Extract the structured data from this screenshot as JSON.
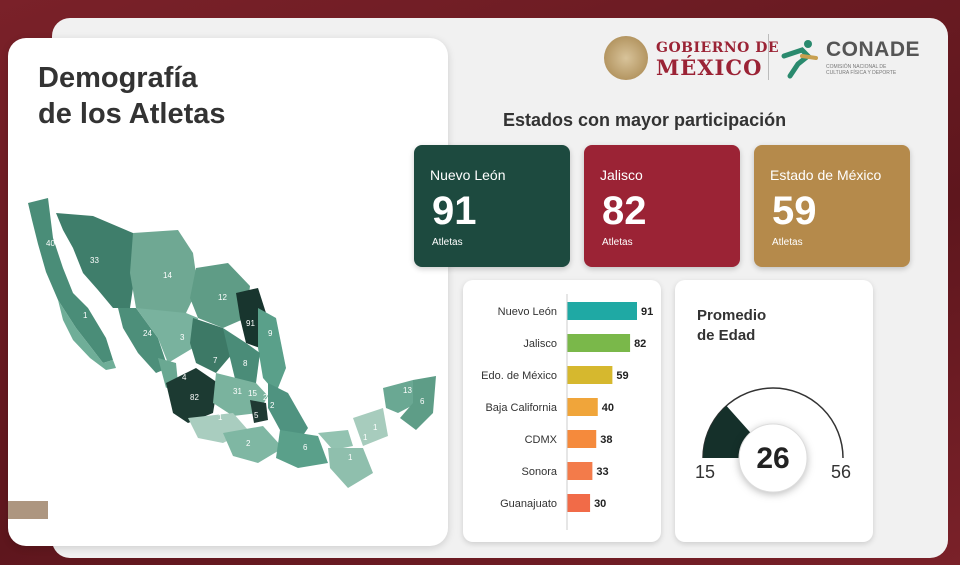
{
  "title": {
    "line1": "Demografía",
    "line2": "de los Atletas"
  },
  "logos": {
    "gobierno_line1": "GOBIERNO DE",
    "gobierno_line2": "MÉXICO",
    "conade": "CONADE",
    "conade_sub": "COMISIÓN NACIONAL DE CULTURA FÍSICA Y DEPORTE"
  },
  "top_states": {
    "heading": "Estados con mayor participación",
    "cards": [
      {
        "state": "Nuevo León",
        "value": "91",
        "unit": "Atletas",
        "color": "#1d4a3f"
      },
      {
        "state": "Jalisco",
        "value": "82",
        "unit": "Atletas",
        "color": "#9b2335"
      },
      {
        "state": "Estado de México",
        "value": "59",
        "unit": "Atletas",
        "color": "#b58a4b"
      }
    ]
  },
  "age": {
    "title_line1": "Promedio",
    "title_line2": "de Edad",
    "value": "26",
    "min": "15",
    "max": "56",
    "fill_color": "#15302a"
  },
  "map": {
    "labels": [
      "40",
      "33",
      "14",
      "12",
      "91",
      "9",
      "24",
      "3",
      "7",
      "8",
      "82",
      "4",
      "31",
      "15",
      "2",
      "2",
      "1",
      "5",
      "2",
      "6",
      "1",
      "13",
      "6",
      "1",
      "1",
      "1"
    ]
  },
  "chart_data": {
    "type": "bar",
    "orientation": "horizontal",
    "categories": [
      "Nuevo León",
      "Jalisco",
      "Edo. de México",
      "Baja California",
      "CDMX",
      "Sonora",
      "Guanajuato"
    ],
    "values": [
      91,
      82,
      59,
      40,
      38,
      33,
      30
    ],
    "colors": [
      "#1fa9a4",
      "#7ab84a",
      "#d6b82e",
      "#f0a53a",
      "#f58a3c",
      "#f37b4a",
      "#f16b48"
    ],
    "xlim": [
      0,
      91
    ]
  }
}
